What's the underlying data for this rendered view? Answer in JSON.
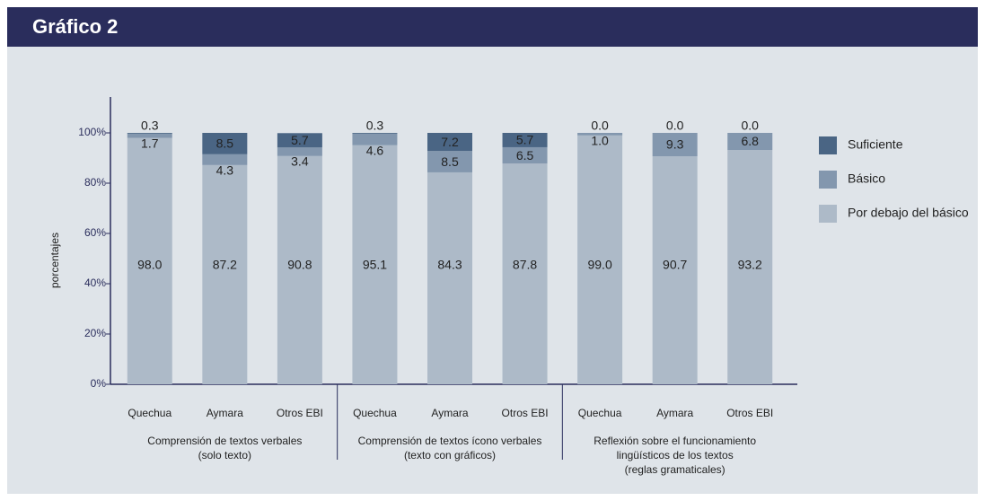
{
  "chart_data": {
    "type": "stacked_bar",
    "title": "Gráfico 2",
    "y_label": "porcentajes",
    "categories": [
      "Quechua",
      "Aymara",
      "Otros EBI",
      "Quechua",
      "Aymara",
      "Otros EBI",
      "Quechua",
      "Aymara",
      "Otros EBI"
    ],
    "groups": [
      [
        "Comprensión de textos verbales",
        "(solo texto)"
      ],
      [
        "Comprensión de textos ícono verbales",
        "(texto con gráficos)"
      ],
      [
        "Reflexión sobre el funcionamiento",
        "lingüísticos de los textos",
        "(reglas gramaticales)"
      ]
    ],
    "series": [
      {
        "name": "Por debajo del básico",
        "color": "#adbac8",
        "values": [
          98,
          87.2,
          90.8,
          95.1,
          84.3,
          87.8,
          99,
          90.7,
          93.2
        ],
        "value_labels": [
          "98.0",
          "87.2",
          "90.8",
          "95.1",
          "84.3",
          "87.8",
          "99.0",
          "90.7",
          "93.2"
        ]
      },
      {
        "name": "Básico",
        "color": "#8397ae",
        "values": [
          1.7,
          4.3,
          3.4,
          4.6,
          8.5,
          6.5,
          1,
          9.3,
          6.8
        ],
        "value_labels": [
          "1.7",
          "4.3",
          "3.4",
          "4.6",
          "8.5",
          "6.5",
          "1.0",
          "9.3",
          "6.8"
        ]
      },
      {
        "name": "Suficiente",
        "color": "#4a6584",
        "values": [
          0.3,
          8.5,
          5.7,
          0.3,
          7.2,
          5.7,
          0,
          0,
          0
        ],
        "value_labels": [
          "0.3",
          "8.5",
          "5.7",
          "0.3",
          "7.2",
          "5.7",
          "0.0",
          "0.0",
          "0.0"
        ]
      }
    ],
    "ylim": [
      0,
      100
    ],
    "yticks": [
      {
        "value": 0,
        "label": "0%"
      },
      {
        "value": 20,
        "label": "20%"
      },
      {
        "value": 40,
        "label": "40%"
      },
      {
        "value": 60,
        "label": "60%"
      },
      {
        "value": 80,
        "label": "80%"
      },
      {
        "value": 100,
        "label": "100%"
      }
    ]
  }
}
